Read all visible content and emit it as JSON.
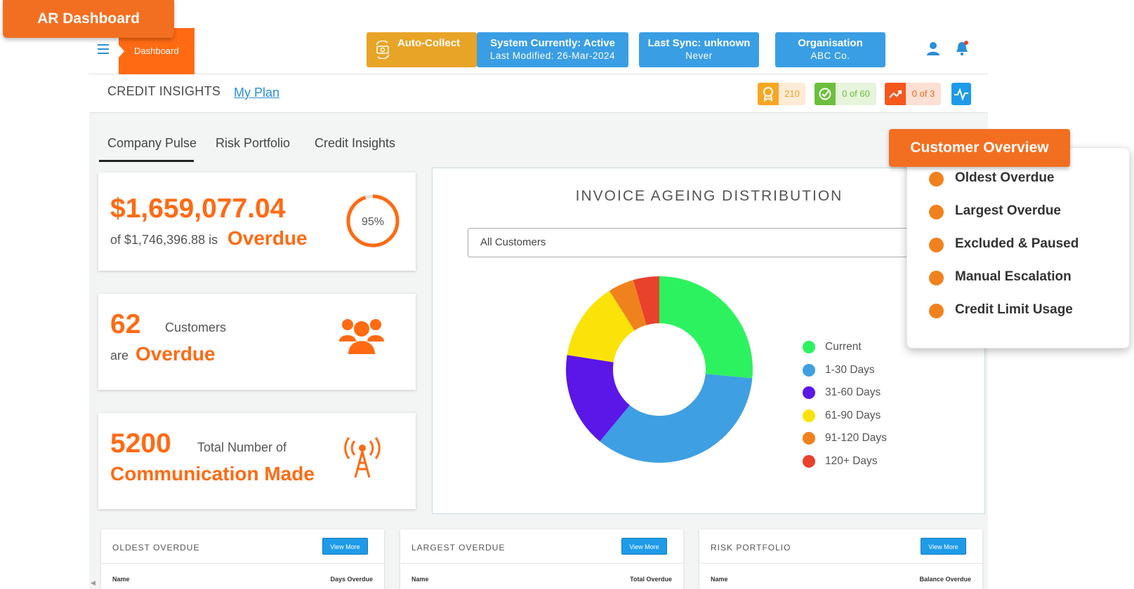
{
  "badge": {
    "label": "AR Dashboard"
  },
  "header": {
    "dashboard_tab": "Dashboard",
    "auto_collect": "Auto-Collect",
    "system_status": {
      "line1": "System Currently: Active",
      "line2": "Last Modified: 26-Mar-2024"
    },
    "last_sync": {
      "line1": "Last Sync: unknown",
      "line2": "Never"
    },
    "organisation": {
      "line1": "Organisation",
      "line2": "ABC Co."
    }
  },
  "subbar": {
    "title": "CREDIT INSIGHTS",
    "my_plan": "My Plan",
    "stats": {
      "award": "210",
      "check": "0 of 60",
      "trend": "0 of 3"
    }
  },
  "tabs": [
    "Company Pulse",
    "Risk Portfolio",
    "Credit Insights"
  ],
  "cards": {
    "overdue_amount": {
      "amount": "$1,659,077.04",
      "of_text": "of $1,746,396.88 is",
      "overdue": "Overdue",
      "percent_label": "95%",
      "percent": 0.95
    },
    "customers": {
      "count": "62",
      "label": "Customers",
      "are": "are",
      "overdue": "Overdue"
    },
    "communication": {
      "count": "5200",
      "label": "Total Number of",
      "made": "Communication Made"
    }
  },
  "chart": {
    "title": "INVOICE AGEING DISTRIBUTION",
    "filter": "All Customers"
  },
  "chart_data": {
    "type": "pie",
    "donut": true,
    "title": "INVOICE AGEING DISTRIBUTION",
    "categories": [
      "Current",
      "1-30 Days",
      "31-60 Days",
      "61-90 Days",
      "91-120 Days",
      "120+ Days"
    ],
    "values": [
      26.5,
      34.5,
      16.5,
      13.5,
      4.5,
      4.5
    ],
    "colors": [
      "#2df25f",
      "#3e9fe2",
      "#5b16e8",
      "#fbe309",
      "#f0821e",
      "#e8412c"
    ],
    "legend": "right"
  },
  "bottom_panels": [
    {
      "title": "OLDEST OVERDUE",
      "button": "View More",
      "col1": "Name",
      "col2": "Days Overdue"
    },
    {
      "title": "LARGEST OVERDUE",
      "button": "View More",
      "col1": "Name",
      "col2": "Total Overdue"
    },
    {
      "title": "RISK PORTFOLIO",
      "button": "View More",
      "col1": "Name",
      "col2": "Balance Overdue"
    }
  ],
  "customer_overview": {
    "title": "Customer Overview",
    "items": [
      "Oldest  Overdue",
      "Largest Overdue",
      "Excluded & Paused",
      "Manual Escalation",
      "Credit Limit Usage"
    ]
  },
  "colors": {
    "brand_orange": "#ff6a13",
    "accent_blue": "#3a9ee4",
    "gold": "#e8a427"
  }
}
